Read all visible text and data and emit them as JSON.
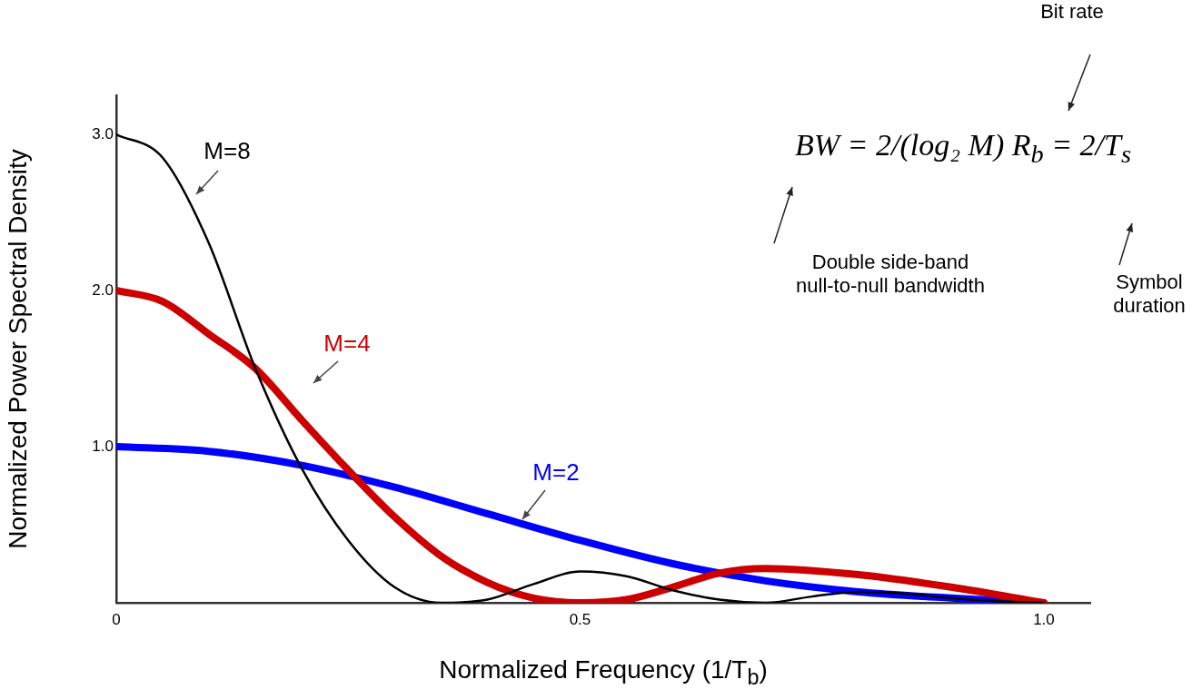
{
  "chart_data": {
    "type": "line",
    "xlabel": "Normalized Frequency (1/T$_{b}$)",
    "ylabel": "Normalized Power Spectral Density",
    "xlim": [
      0,
      1.05
    ],
    "ylim": [
      0,
      3.25
    ],
    "xticks": [
      0,
      0.5,
      {
        "value": 1,
        "label": "1.0"
      }
    ],
    "yticks": [
      {
        "value": 1,
        "label": "1.0"
      },
      {
        "value": 2,
        "label": "2.0"
      },
      {
        "value": 3,
        "label": "3.0"
      }
    ],
    "grid": false,
    "legend": false,
    "marker": "none",
    "line_style": "solid",
    "series": [
      {
        "name": "M=8",
        "color": "#000000",
        "x": [
          0,
          0.05,
          0.1,
          0.15,
          0.2,
          0.25,
          0.3,
          0.35,
          0.4,
          0.45,
          0.5,
          0.55,
          0.6,
          0.65,
          0.7,
          0.75,
          0.8,
          0.85,
          0.9,
          0.95,
          1.0
        ],
        "values": [
          3.0,
          2.85,
          2.3,
          1.5,
          0.86,
          0.4,
          0.1,
          0.0,
          0.02,
          0.12,
          0.2,
          0.17,
          0.08,
          0.02,
          0.0,
          0.04,
          0.07,
          0.06,
          0.03,
          0.01,
          0.0
        ]
      },
      {
        "name": "M=4",
        "color": "#cc0000",
        "x": [
          0,
          0.05,
          0.1,
          0.15,
          0.2,
          0.25,
          0.3,
          0.35,
          0.4,
          0.45,
          0.5,
          0.55,
          0.6,
          0.65,
          0.7,
          0.8,
          0.9,
          1.0
        ],
        "values": [
          2.0,
          1.93,
          1.72,
          1.5,
          1.17,
          0.85,
          0.55,
          0.3,
          0.13,
          0.03,
          0.0,
          0.02,
          0.1,
          0.19,
          0.22,
          0.18,
          0.1,
          0.0
        ]
      },
      {
        "name": "M=2",
        "color": "#0000ff",
        "x": [
          0,
          0.1,
          0.2,
          0.3,
          0.4,
          0.5,
          0.6,
          0.7,
          0.8,
          0.9,
          1.0
        ],
        "values": [
          1.0,
          0.97,
          0.88,
          0.74,
          0.57,
          0.4,
          0.25,
          0.14,
          0.07,
          0.03,
          0.0
        ]
      }
    ],
    "annotations": [
      "BW = 2/(log₂ M) R$_{b}$ = 2/T$_{s}$",
      "Bit rate",
      "Double side-band null-to-null bandwidth",
      "Symbol duration"
    ]
  }
}
